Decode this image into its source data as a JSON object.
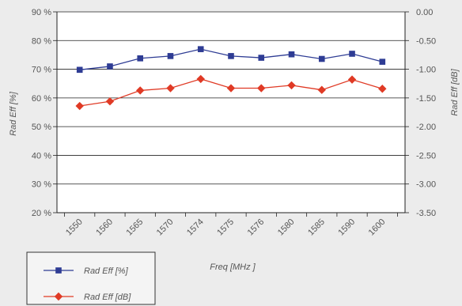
{
  "chart_data": {
    "type": "line",
    "title": "",
    "categories": [
      "1550",
      "1560",
      "1565",
      "1570",
      "1574",
      "1575",
      "1576",
      "1580",
      "1585",
      "1590",
      "1600"
    ],
    "xlabel": "Freq [MHz ]",
    "ylabel_left": "Rad Eff [%]",
    "ylabel_right": "Rad Eff [dB]",
    "y_left": {
      "range": [
        20,
        90
      ],
      "ticks": [
        20,
        30,
        40,
        50,
        60,
        70,
        80,
        90
      ],
      "tick_labels": [
        "20 %",
        "30 %",
        "40 %",
        "50 %",
        "60 %",
        "70 %",
        "80 %",
        "90 %"
      ]
    },
    "y_right": {
      "range": [
        -3.5,
        0
      ],
      "ticks": [
        -3.5,
        -3.0,
        -2.5,
        -2.0,
        -1.5,
        -1.0,
        -0.5,
        0
      ],
      "tick_labels": [
        "-3.50",
        "-3.00",
        "-2.50",
        "-2.00",
        "-1.50",
        "-1.00",
        "-0.50",
        "0.00"
      ]
    },
    "grid": "horizontal",
    "legend_position": "bottom-left",
    "series": [
      {
        "name": "Rad Eff [%]",
        "axis": "left",
        "marker": "square",
        "color": "#2e3c94",
        "values": [
          69.8,
          71,
          73.8,
          74.6,
          77,
          74.6,
          74,
          75.2,
          73.6,
          75.4,
          72.6
        ]
      },
      {
        "name": "Rad Eff [dB]",
        "axis": "right",
        "marker": "diamond",
        "color": "#e03a25",
        "values": [
          -1.64,
          -1.56,
          -1.37,
          -1.33,
          -1.17,
          -1.33,
          -1.33,
          -1.28,
          -1.36,
          -1.18,
          -1.34
        ]
      }
    ]
  }
}
